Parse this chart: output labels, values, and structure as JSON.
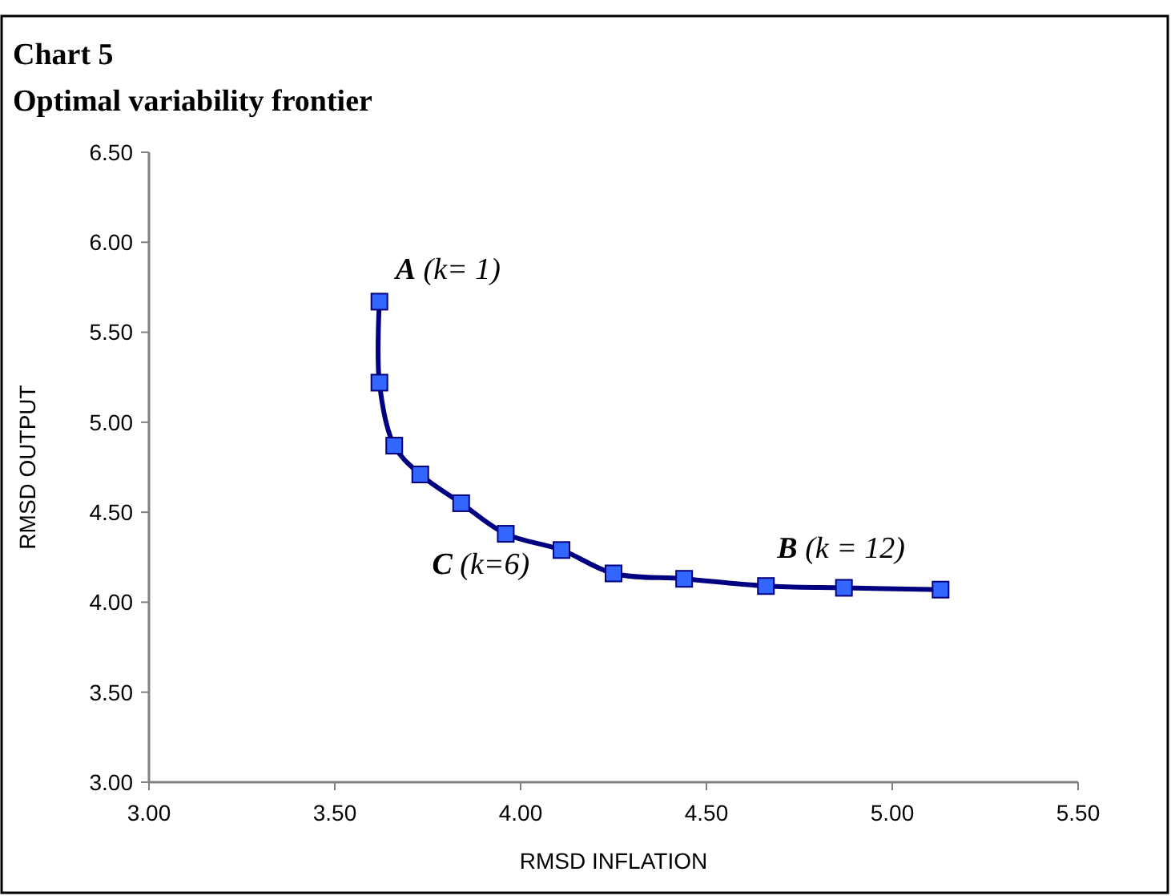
{
  "chart_data": {
    "type": "line",
    "title": "Chart 5",
    "subtitle": "Optimal variability frontier",
    "xlabel": "RMSD  INFLATION",
    "ylabel": "RMSD  OUTPUT",
    "series": [
      {
        "color": "#000080",
        "x": [
          3.62,
          3.62,
          3.66,
          3.73,
          3.84,
          3.96,
          4.11,
          4.25,
          4.44,
          4.66,
          4.87,
          5.13
        ],
        "values": [
          5.67,
          5.22,
          4.87,
          4.71,
          4.55,
          4.38,
          4.29,
          4.16,
          4.13,
          4.09,
          4.08,
          4.07
        ]
      }
    ],
    "marker": "square",
    "xlim": [
      3,
      5.5
    ],
    "xticks": [
      {
        "value": 3,
        "label": "3.00"
      },
      {
        "value": 3.5,
        "label": "3.50"
      },
      {
        "value": 4,
        "label": "4.00"
      },
      {
        "value": 4.5,
        "label": "4.50"
      },
      {
        "value": 5,
        "label": "5.00"
      },
      {
        "value": 5.5,
        "label": "5.50"
      }
    ],
    "ylim": [
      3,
      6.5
    ],
    "yticks": [
      {
        "value": 3,
        "label": "3.00"
      },
      {
        "value": 3.5,
        "label": "3.50"
      },
      {
        "value": 4,
        "label": "4.00"
      },
      {
        "value": 4.5,
        "label": "4.50"
      },
      {
        "value": 5,
        "label": "5.00"
      },
      {
        "value": 5.5,
        "label": "5.50"
      },
      {
        "value": 6,
        "label": "6.00"
      },
      {
        "value": 6.5,
        "label": "6.50"
      }
    ],
    "annotations": [
      {
        "text": "A  (k= 1)",
        "x": 3.62,
        "y": 5.67
      },
      {
        "text": "C  (k=6)",
        "x": 3.96,
        "y": 4.38
      },
      {
        "text": "B (k = 12)",
        "x": 5.13,
        "y": 4.07
      }
    ],
    "grid": false
  }
}
